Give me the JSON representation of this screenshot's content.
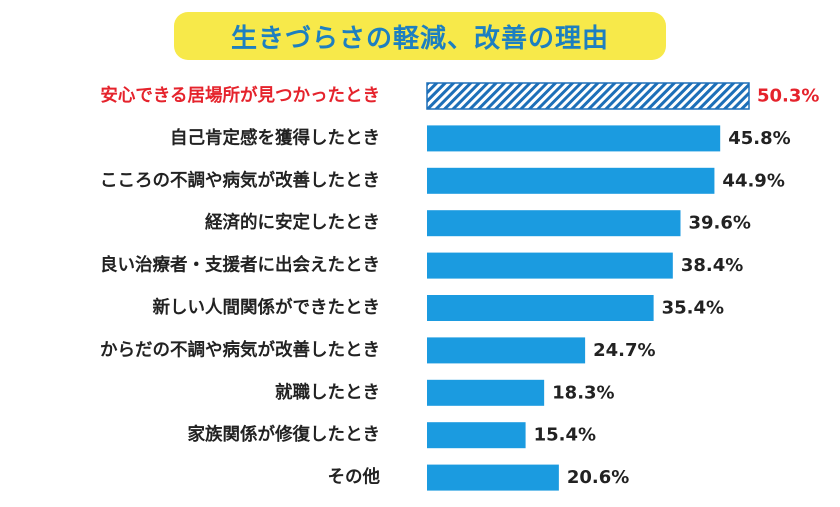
{
  "chart_data": {
    "type": "bar",
    "orientation": "horizontal",
    "title": "生きづらさの軽減、改善の理由",
    "categories": [
      "安心できる居場所が見つかったとき",
      "自己肯定感を獲得したとき",
      "こころの不調や病気が改善したとき",
      "経済的に安定したとき",
      "良い治療者・支援者に出会えたとき",
      "新しい人間関係ができたとき",
      "からだの不調や病気が改善したとき",
      "就職したとき",
      "家族関係が修復したとき",
      "その他"
    ],
    "values": [
      50.3,
      45.8,
      44.9,
      39.6,
      38.4,
      35.4,
      24.7,
      18.3,
      15.4,
      20.6
    ],
    "value_labels": [
      "50.3%",
      "45.8%",
      "44.9%",
      "39.6%",
      "38.4%",
      "35.4%",
      "24.7%",
      "18.3%",
      "15.4%",
      "20.6%"
    ],
    "highlight_index": 0,
    "unit": "%",
    "colors": {
      "bar": "#1b9be0",
      "highlight_bar": "#1d6fb8",
      "highlight_text": "#e5232c",
      "title_bg": "#f7e94a",
      "title_text": "#1d7fc0"
    }
  }
}
